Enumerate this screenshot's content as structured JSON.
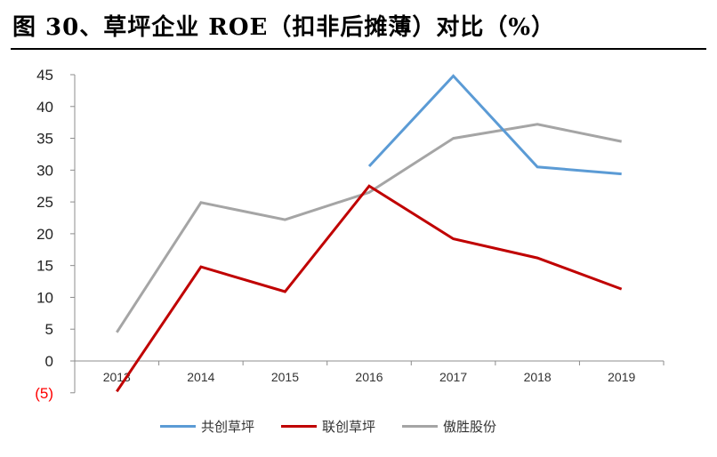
{
  "title": "图 30、草坪企业 ROE（扣非后摊薄）对比（%）",
  "chart_data": {
    "type": "line",
    "title": "图 30、草坪企业 ROE（扣非后摊薄）对比（%）",
    "xlabel": "",
    "ylabel": "",
    "categories": [
      "2013",
      "2014",
      "2015",
      "2016",
      "2017",
      "2018",
      "2019"
    ],
    "series": [
      {
        "name": "共创草坪",
        "color": "#5B9BD5",
        "values": [
          null,
          null,
          null,
          30.6,
          44.8,
          30.5,
          29.4
        ]
      },
      {
        "name": "联创草坪",
        "color": "#C00000",
        "values": [
          -4.8,
          14.8,
          10.9,
          27.5,
          19.2,
          16.2,
          11.3
        ]
      },
      {
        "name": "傲胜股份",
        "color": "#A5A5A5",
        "values": [
          4.5,
          24.9,
          22.2,
          26.5,
          35.0,
          37.2,
          34.5
        ]
      }
    ],
    "ylim": [
      -5,
      45
    ],
    "yticks": [
      45,
      40,
      35,
      30,
      25,
      20,
      15,
      10,
      5,
      0,
      -5
    ],
    "ytick_labels": [
      "45",
      "40",
      "35",
      "30",
      "25",
      "20",
      "15",
      "10",
      "5",
      "0",
      "(5)"
    ],
    "negative_tick_color": "#FF0000",
    "grid": false,
    "legend_position": "bottom"
  },
  "legend": [
    {
      "label": "共创草坪",
      "color": "#5B9BD5"
    },
    {
      "label": "联创草坪",
      "color": "#C00000"
    },
    {
      "label": "傲胜股份",
      "color": "#A5A5A5"
    }
  ]
}
